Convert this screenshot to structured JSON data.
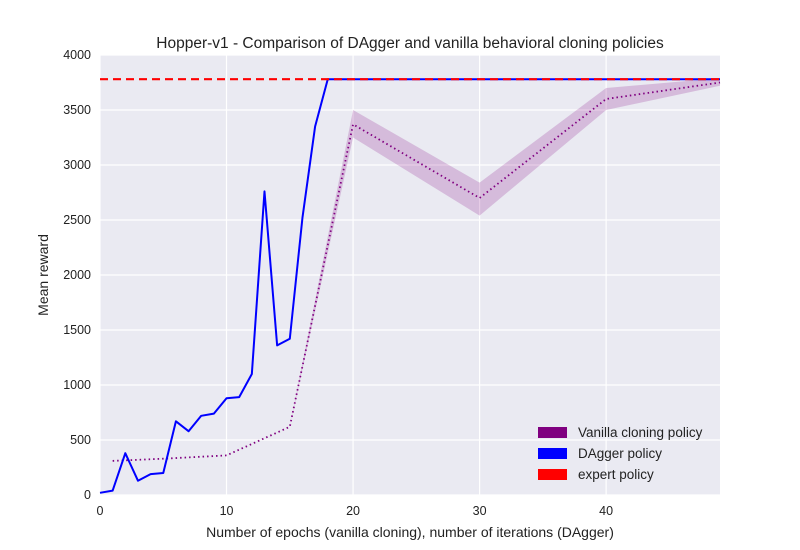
{
  "chart_data": {
    "type": "line",
    "title": "Hopper-v1 - Comparison of DAgger and vanilla behavioral cloning policies",
    "xlabel": "Number of epochs (vanilla cloning), number of iterations (DAgger)",
    "ylabel": "Mean reward",
    "xlim": [
      0,
      49
    ],
    "ylim": [
      0,
      4000
    ],
    "xticks": [
      0,
      10,
      20,
      30,
      40
    ],
    "yticks": [
      0,
      500,
      1000,
      1500,
      2000,
      2500,
      3000,
      3500,
      4000
    ],
    "grid": true,
    "legend_position": "lower-right",
    "legend": [
      {
        "label": "Vanilla cloning policy",
        "color": "#800080"
      },
      {
        "label": "DAgger policy",
        "color": "#0000ff"
      },
      {
        "label": "expert policy",
        "color": "#ff0000"
      }
    ],
    "series": [
      {
        "name": "Vanilla cloning policy",
        "color": "#800080",
        "style": "dotted",
        "x": [
          1,
          5,
          10,
          15,
          20,
          30,
          40,
          49
        ],
        "y": [
          310,
          330,
          360,
          620,
          3370,
          2700,
          3600,
          3750
        ],
        "y_lower": [
          310,
          330,
          360,
          620,
          3250,
          2540,
          3500,
          3720
        ],
        "y_upper": [
          310,
          330,
          360,
          620,
          3500,
          2840,
          3700,
          3790
        ]
      },
      {
        "name": "DAgger policy",
        "color": "#0000ff",
        "style": "solid",
        "x": [
          0,
          1,
          2,
          3,
          4,
          5,
          6,
          7,
          8,
          9,
          10,
          11,
          12,
          13,
          14,
          15,
          16,
          17,
          18,
          19,
          20,
          21,
          22,
          23,
          24,
          25,
          26,
          27,
          28,
          29,
          30,
          31,
          32,
          33,
          34,
          35,
          36,
          37,
          38,
          39,
          40,
          41,
          42,
          43,
          44,
          45,
          46,
          47,
          48,
          49
        ],
        "y": [
          20,
          40,
          380,
          130,
          190,
          200,
          670,
          580,
          720,
          740,
          880,
          890,
          1100,
          2760,
          1360,
          1420,
          2520,
          3350,
          3780,
          3780,
          3780,
          3780,
          3780,
          3780,
          3780,
          3780,
          3780,
          3780,
          3780,
          3780,
          3780,
          3780,
          3780,
          3780,
          3780,
          3780,
          3780,
          3780,
          3780,
          3780,
          3780,
          3780,
          3780,
          3780,
          3780,
          3780,
          3780,
          3780,
          3780,
          3780
        ]
      },
      {
        "name": "expert policy",
        "color": "#ff0000",
        "style": "dashed",
        "x": [
          0,
          49
        ],
        "y": [
          3780,
          3780
        ]
      }
    ]
  }
}
